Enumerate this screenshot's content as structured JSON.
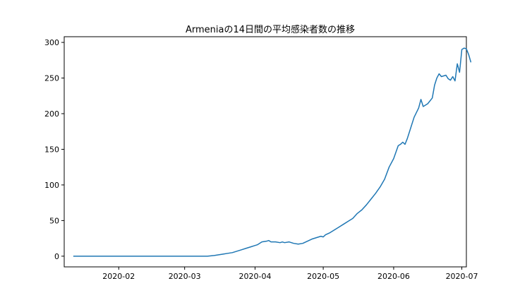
{
  "chart_data": {
    "type": "line",
    "title": "Armeniaの14日間の平均感染者数の推移",
    "xlabel": "",
    "ylabel": "",
    "x_ticks": [
      "2020-02",
      "2020-03",
      "2020-04",
      "2020-05",
      "2020-06",
      "2020-07"
    ],
    "y_ticks": [
      0,
      50,
      100,
      150,
      200,
      250,
      300
    ],
    "xlim": [
      "2020-01-08",
      "2020-07-03"
    ],
    "ylim": [
      -15,
      308
    ],
    "grid": false,
    "series": [
      {
        "color": "#1f77b4",
        "points": [
          [
            "2020-01-12",
            0
          ],
          [
            "2020-01-20",
            0
          ],
          [
            "2020-02-01",
            0
          ],
          [
            "2020-02-15",
            0
          ],
          [
            "2020-03-01",
            0
          ],
          [
            "2020-03-11",
            0
          ],
          [
            "2020-03-14",
            1
          ],
          [
            "2020-03-16",
            2
          ],
          [
            "2020-03-18",
            3
          ],
          [
            "2020-03-20",
            4
          ],
          [
            "2020-03-22",
            5
          ],
          [
            "2020-03-24",
            7
          ],
          [
            "2020-03-26",
            9
          ],
          [
            "2020-03-28",
            11
          ],
          [
            "2020-03-30",
            13
          ],
          [
            "2020-04-01",
            15
          ],
          [
            "2020-04-02",
            16
          ],
          [
            "2020-04-04",
            20
          ],
          [
            "2020-04-06",
            21
          ],
          [
            "2020-04-07",
            22
          ],
          [
            "2020-04-08",
            20
          ],
          [
            "2020-04-10",
            20
          ],
          [
            "2020-04-12",
            19
          ],
          [
            "2020-04-13",
            20
          ],
          [
            "2020-04-14",
            19
          ],
          [
            "2020-04-16",
            20
          ],
          [
            "2020-04-18",
            18
          ],
          [
            "2020-04-20",
            17
          ],
          [
            "2020-04-22",
            18
          ],
          [
            "2020-04-24",
            21
          ],
          [
            "2020-04-26",
            24
          ],
          [
            "2020-04-28",
            26
          ],
          [
            "2020-04-30",
            28
          ],
          [
            "2020-05-01",
            27
          ],
          [
            "2020-05-02",
            30
          ],
          [
            "2020-05-04",
            33
          ],
          [
            "2020-05-06",
            37
          ],
          [
            "2020-05-08",
            41
          ],
          [
            "2020-05-10",
            45
          ],
          [
            "2020-05-12",
            49
          ],
          [
            "2020-05-14",
            53
          ],
          [
            "2020-05-16",
            60
          ],
          [
            "2020-05-18",
            65
          ],
          [
            "2020-05-20",
            72
          ],
          [
            "2020-05-22",
            80
          ],
          [
            "2020-05-24",
            88
          ],
          [
            "2020-05-26",
            97
          ],
          [
            "2020-05-28",
            108
          ],
          [
            "2020-05-30",
            125
          ],
          [
            "2020-06-01",
            137
          ],
          [
            "2020-06-03",
            155
          ],
          [
            "2020-06-04",
            157
          ],
          [
            "2020-06-05",
            160
          ],
          [
            "2020-06-06",
            157
          ],
          [
            "2020-06-07",
            165
          ],
          [
            "2020-06-08",
            175
          ],
          [
            "2020-06-10",
            195
          ],
          [
            "2020-06-12",
            208
          ],
          [
            "2020-06-13",
            220
          ],
          [
            "2020-06-14",
            210
          ],
          [
            "2020-06-16",
            214
          ],
          [
            "2020-06-18",
            222
          ],
          [
            "2020-06-19",
            240
          ],
          [
            "2020-06-20",
            250
          ],
          [
            "2020-06-21",
            256
          ],
          [
            "2020-06-22",
            252
          ],
          [
            "2020-06-24",
            254
          ],
          [
            "2020-06-25",
            249
          ],
          [
            "2020-06-26",
            247
          ],
          [
            "2020-06-27",
            252
          ],
          [
            "2020-06-28",
            246
          ],
          [
            "2020-06-29",
            270
          ],
          [
            "2020-06-30",
            258
          ],
          [
            "2020-07-01",
            290
          ],
          [
            "2020-07-02",
            292
          ],
          [
            "2020-07-03",
            291
          ],
          [
            "2020-07-04",
            283
          ],
          [
            "2020-07-05",
            272
          ]
        ]
      }
    ]
  }
}
